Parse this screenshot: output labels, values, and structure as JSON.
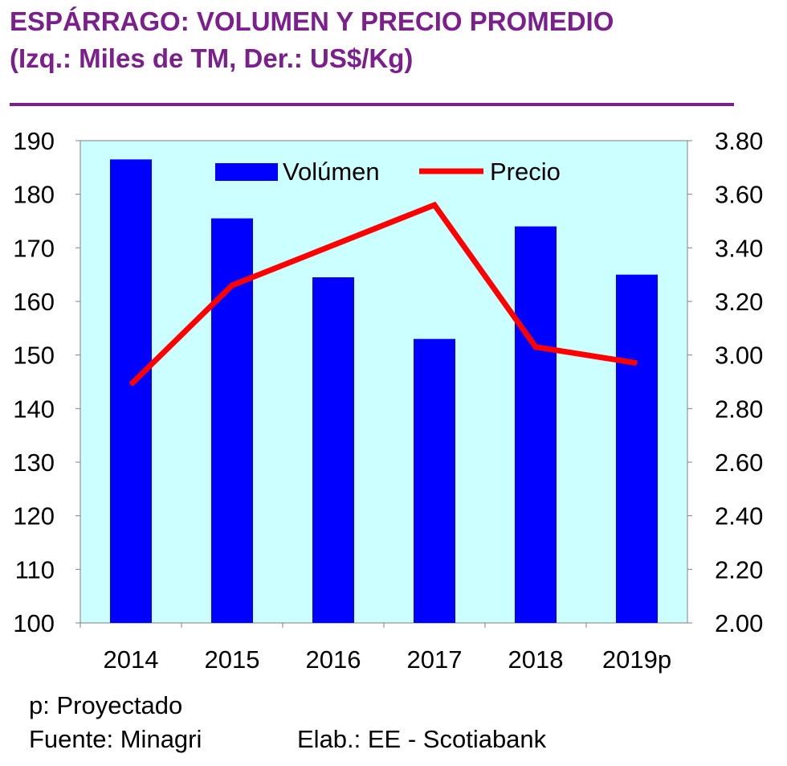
{
  "header": {
    "title_line1": "ESPÁRRAGO: VOLUMEN Y PRECIO PROMEDIO",
    "title_line2": "(Izq.: Miles de TM, Der.: US$/Kg)"
  },
  "footer": {
    "note": "p: Proyectado",
    "source": "Fuente: Minagri",
    "elaboration": "Elab.: EE - Scotiabank"
  },
  "colors": {
    "title": "#7B1F8C",
    "plot_background": "#CCFFFF",
    "bars": "#0000FF",
    "line": "#FF0000"
  },
  "chart_data": {
    "type": "bar",
    "categories": [
      "2014",
      "2015",
      "2016",
      "2017",
      "2018",
      "2019p"
    ],
    "series": [
      {
        "name": "Volúmen",
        "type": "bar",
        "axis": "left",
        "values": [
          186.5,
          175.5,
          164.5,
          153,
          174,
          165
        ]
      },
      {
        "name": "Precio",
        "type": "line",
        "axis": "right",
        "values": [
          2.89,
          3.26,
          3.41,
          3.56,
          3.03,
          2.97
        ]
      }
    ],
    "y_left": {
      "min": 100,
      "max": 190,
      "ticks": [
        "190",
        "180",
        "170",
        "160",
        "150",
        "140",
        "130",
        "120",
        "110",
        "100"
      ]
    },
    "y_right": {
      "min": 2.0,
      "max": 3.8,
      "ticks": [
        "3.80",
        "3.60",
        "3.40",
        "3.20",
        "3.00",
        "2.80",
        "2.60",
        "2.40",
        "2.20",
        "2.00"
      ]
    },
    "legend": {
      "position": "top-center",
      "entries": [
        "Volúmen",
        "Precio"
      ]
    },
    "grid": false
  }
}
